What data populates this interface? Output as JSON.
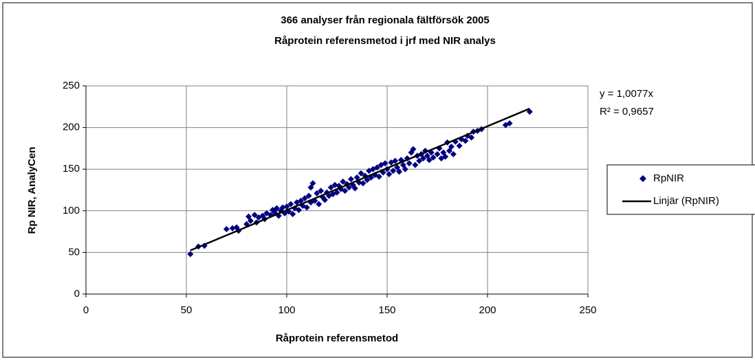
{
  "chart_data": {
    "type": "scatter",
    "title": "366 analyser från regionala fältförsök 2005",
    "subtitle": "Råprotein referensmetod i jrf med NIR analys",
    "x_label": "Råprotein referensmetod",
    "y_label": "Rp NIR, AnalyCen",
    "annotations": [
      "y = 1,0077x",
      "R² = 0,9657"
    ],
    "xlim": [
      0,
      250
    ],
    "xticks": [
      0,
      50,
      100,
      150,
      200,
      250
    ],
    "ylim": [
      0,
      250
    ],
    "yticks": [
      0,
      50,
      100,
      150,
      200,
      250
    ],
    "grid": true,
    "legend": "right",
    "series": [
      {
        "name": "RpNIR",
        "color": "#000080",
        "x": [
          52,
          56,
          59,
          70,
          73,
          75,
          76,
          80,
          81,
          82,
          84,
          85,
          86,
          88,
          89,
          90,
          92,
          93,
          94,
          95,
          96,
          97,
          98,
          99,
          100,
          101,
          102,
          103,
          104,
          105,
          106,
          107,
          108,
          109,
          110,
          111,
          112,
          112,
          113,
          114,
          115,
          116,
          117,
          118,
          119,
          120,
          121,
          122,
          123,
          124,
          125,
          126,
          127,
          128,
          129,
          130,
          131,
          132,
          133,
          134,
          135,
          136,
          137,
          138,
          139,
          140,
          141,
          142,
          143,
          144,
          145,
          146,
          147,
          148,
          149,
          150,
          151,
          152,
          153,
          154,
          155,
          156,
          157,
          158,
          159,
          160,
          161,
          162,
          163,
          164,
          165,
          166,
          167,
          168,
          169,
          170,
          171,
          172,
          173,
          175,
          176,
          177,
          178,
          179,
          180,
          181,
          182,
          183,
          184,
          186,
          187,
          189,
          190,
          192,
          193,
          195,
          197,
          209,
          211,
          221
        ],
        "values": [
          48,
          57,
          58,
          78,
          79,
          80,
          76,
          84,
          93,
          88,
          95,
          86,
          92,
          94,
          90,
          97,
          95,
          101,
          98,
          103,
          94,
          100,
          104,
          97,
          105,
          99,
          108,
          96,
          103,
          110,
          101,
          112,
          106,
          115,
          104,
          118,
          128,
          110,
          133,
          112,
          121,
          108,
          124,
          116,
          113,
          122,
          118,
          128,
          120,
          131,
          122,
          130,
          126,
          135,
          124,
          132,
          128,
          138,
          131,
          127,
          140,
          134,
          145,
          133,
          142,
          137,
          148,
          140,
          150,
          143,
          152,
          141,
          155,
          146,
          157,
          150,
          144,
          158,
          148,
          160,
          152,
          147,
          161,
          155,
          150,
          163,
          157,
          170,
          174,
          155,
          166,
          160,
          168,
          163,
          172,
          166,
          161,
          170,
          164,
          168,
          175,
          163,
          170,
          165,
          182,
          172,
          177,
          168,
          183,
          178,
          186,
          184,
          190,
          188,
          195,
          196,
          198,
          203,
          205,
          219
        ]
      }
    ],
    "trendline": {
      "name": "Linjär (RpNIR)",
      "color": "#000000",
      "x": [
        52,
        221
      ],
      "values": [
        52.4,
        222.7
      ]
    }
  }
}
